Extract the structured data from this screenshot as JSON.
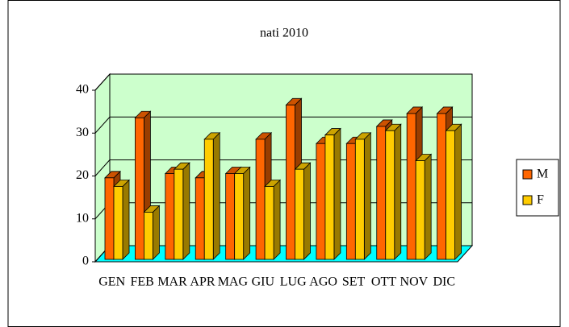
{
  "chart_data": {
    "type": "bar",
    "title": "nati 2010",
    "categories": [
      "GEN",
      "FEB",
      "MAR",
      "APR",
      "MAG",
      "GIU",
      "LUG",
      "AGO",
      "SET",
      "OTT",
      "NOV",
      "DIC"
    ],
    "series": [
      {
        "name": "M",
        "color": "#ff6600",
        "values": [
          19,
          33,
          20,
          19,
          20,
          28,
          36,
          27,
          27,
          31,
          34,
          34
        ]
      },
      {
        "name": "F",
        "color": "#ffcc00",
        "values": [
          17,
          11,
          21,
          28,
          20,
          17,
          21,
          29,
          28,
          30,
          23,
          30
        ]
      }
    ],
    "ylim": [
      0,
      40
    ],
    "yticks": [
      0,
      10,
      20,
      30,
      40
    ],
    "grid": true,
    "legend": "right"
  }
}
